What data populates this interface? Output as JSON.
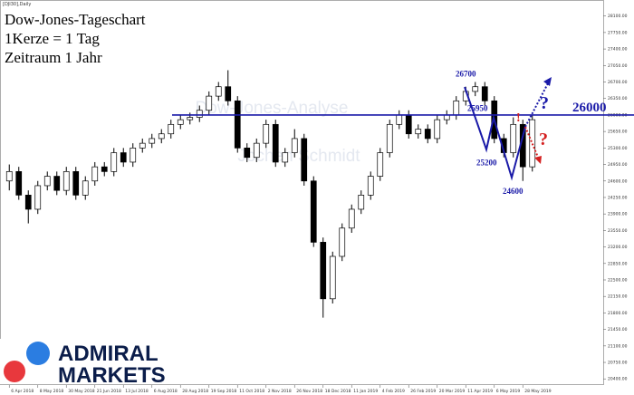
{
  "chart_data": {
    "type": "candlestick",
    "symbol_label": "[DJI30],Daily",
    "title_lines": [
      "Dow-Jones-Tageschart",
      "1Kerze = 1 Tag",
      "Zeitraum 1 Jahr"
    ],
    "watermark": [
      "Dow-Jones-Analyse",
      "Jochen Schmidt"
    ],
    "logo": [
      "ADMIRAL",
      "MARKETS"
    ],
    "categories": [
      "6 Apr 2018",
      null,
      null,
      "8 May 2018",
      null,
      null,
      "30 May 2018",
      null,
      null,
      "21 Jun 2018",
      null,
      null,
      "13 Jul 2018",
      null,
      null,
      "6 Aug 2018",
      null,
      null,
      "28 Aug 2018",
      null,
      null,
      "19 Sep 2018",
      null,
      null,
      "11 Oct 2018",
      null,
      null,
      "2 Nov 2018",
      null,
      null,
      "26 Nov 2018",
      null,
      null,
      "18 Dec 2018",
      null,
      null,
      "11 Jan 2019",
      null,
      null,
      "4 Feb 2019",
      null,
      null,
      "26 Feb 2019",
      null,
      null,
      "20 Mar 2019",
      null,
      null,
      "11 Apr 2019",
      null,
      null,
      "6 May 2019",
      null,
      null,
      "28 May 2019",
      null
    ],
    "open": [
      24600,
      24800,
      24300,
      24000,
      24500,
      24700,
      24400,
      24800,
      24300,
      24600,
      24900,
      24800,
      25200,
      25000,
      25300,
      25400,
      25500,
      25600,
      25800,
      25900,
      25950,
      26100,
      26400,
      26600,
      26300,
      25300,
      25100,
      25400,
      25800,
      25000,
      25200,
      25500,
      24600,
      23300,
      22100,
      23000,
      23600,
      24000,
      24300,
      24700,
      25200,
      25800,
      26000,
      25600,
      25700,
      25500,
      25900,
      26000,
      26300,
      26500,
      26600,
      26300,
      25500,
      25200,
      25800,
      24900
    ],
    "high": [
      24950,
      24900,
      24400,
      24600,
      24800,
      24800,
      24900,
      24900,
      24700,
      25000,
      25000,
      25300,
      25300,
      25400,
      25500,
      25600,
      25700,
      25900,
      26000,
      26050,
      26200,
      26500,
      26700,
      26950,
      26400,
      25400,
      25500,
      25900,
      25900,
      25300,
      25700,
      25600,
      24700,
      23400,
      23100,
      23700,
      24100,
      24400,
      24800,
      25300,
      25900,
      26100,
      26100,
      25800,
      25800,
      26000,
      26100,
      26400,
      26600,
      26700,
      26700,
      26400,
      25600,
      25950,
      25900,
      26000
    ],
    "low": [
      24400,
      24200,
      23700,
      23900,
      24400,
      24300,
      24300,
      24200,
      24200,
      24500,
      24700,
      24700,
      24900,
      24900,
      25200,
      25300,
      25400,
      25500,
      25700,
      25800,
      25850,
      26000,
      26300,
      26200,
      25200,
      25000,
      25000,
      25300,
      24900,
      24900,
      25100,
      24500,
      23200,
      21700,
      22000,
      22900,
      23500,
      23900,
      24200,
      24600,
      25100,
      25700,
      25500,
      25500,
      25400,
      25400,
      25800,
      25900,
      26200,
      26400,
      26200,
      25400,
      25100,
      25100,
      24600,
      24800
    ],
    "close": [
      24800,
      24300,
      24000,
      24500,
      24700,
      24400,
      24800,
      24300,
      24600,
      24900,
      24800,
      25200,
      25000,
      25300,
      25400,
      25500,
      25600,
      25800,
      25900,
      25950,
      26100,
      26400,
      26600,
      26300,
      25300,
      25100,
      25400,
      25800,
      25000,
      25200,
      25500,
      24600,
      23300,
      22100,
      23000,
      23600,
      24000,
      24300,
      24700,
      25200,
      25800,
      26000,
      25600,
      25700,
      25500,
      25900,
      26000,
      26300,
      26500,
      26600,
      26300,
      25500,
      25200,
      25800,
      24900,
      25900
    ],
    "up_color": "#ffffff",
    "down_color": "#000000",
    "ylim": [
      20270,
      28440
    ],
    "yticks": [
      {
        "value": 20400,
        "label": "20400.00"
      },
      {
        "value": 20750,
        "label": "20750.00"
      },
      {
        "value": 21100,
        "label": "21100.00"
      },
      {
        "value": 21450,
        "label": "21450.00"
      },
      {
        "value": 21800,
        "label": "21800.00"
      },
      {
        "value": 22150,
        "label": "22150.00"
      },
      {
        "value": 22500,
        "label": "22500.00"
      },
      {
        "value": 22850,
        "label": "22850.00"
      },
      {
        "value": 23200,
        "label": "23200.00"
      },
      {
        "value": 23550,
        "label": "23550.00"
      },
      {
        "value": 23900,
        "label": "23900.00"
      },
      {
        "value": 24250,
        "label": "24250.00"
      },
      {
        "value": 24600,
        "label": "24600.00"
      },
      {
        "value": 24950,
        "label": "24950.00"
      },
      {
        "value": 25300,
        "label": "25300.00"
      },
      {
        "value": 25650,
        "label": "25650.00"
      },
      {
        "value": 26000,
        "label": "26000.00"
      },
      {
        "value": 26350,
        "label": "26350.00"
      },
      {
        "value": 26700,
        "label": "26700.00"
      },
      {
        "value": 27050,
        "label": "27050.00"
      },
      {
        "value": 27400,
        "label": "27400.00"
      },
      {
        "value": 27750,
        "label": "27750.00"
      },
      {
        "value": 28100,
        "label": "28100.00"
      }
    ],
    "resistance": 26000,
    "resistance_color": "#1a1aa8",
    "levels": [
      26700,
      25950,
      25200,
      24600
    ],
    "marks": [
      "!",
      "?",
      "?"
    ]
  }
}
